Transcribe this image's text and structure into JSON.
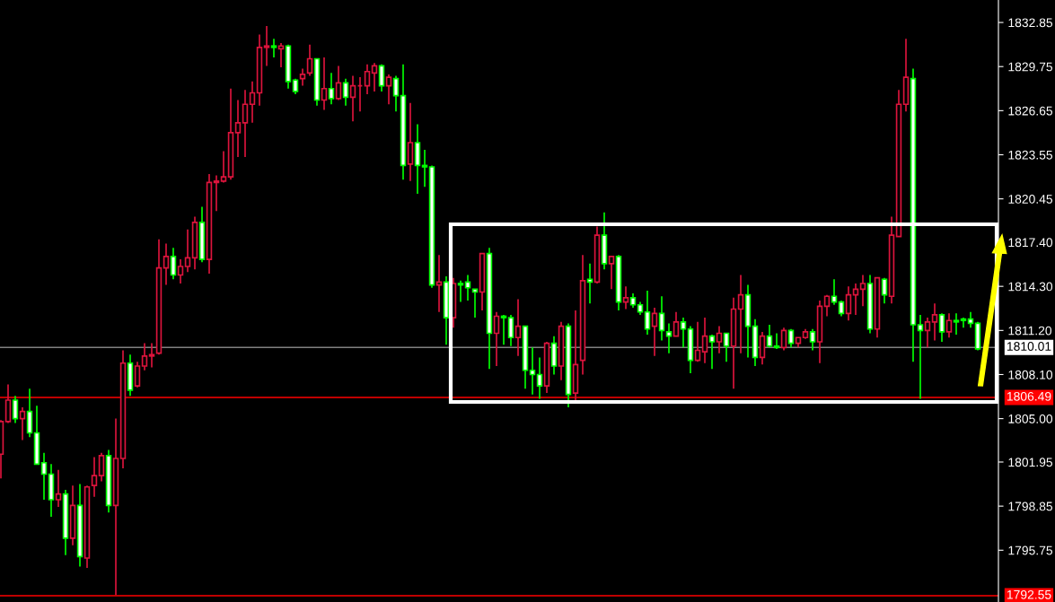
{
  "chart_data": {
    "type": "candlestick",
    "categories": [
      null,
      null,
      null,
      null,
      null,
      null,
      null,
      null,
      null,
      null,
      null,
      null,
      null,
      null,
      null,
      null,
      null,
      null,
      null,
      null,
      null,
      null,
      null,
      null,
      null,
      null,
      null,
      null,
      null,
      null,
      null,
      null,
      null,
      null,
      null,
      null,
      null,
      null,
      null,
      null,
      null,
      null,
      null,
      null,
      null,
      null,
      null,
      null,
      null,
      null,
      null,
      null,
      null,
      null,
      null,
      null,
      null,
      null,
      null,
      null,
      null,
      null,
      null,
      null,
      null,
      null,
      null,
      null,
      null,
      null,
      null,
      null,
      null,
      null,
      null,
      null,
      null,
      null,
      null,
      null,
      null,
      null,
      null,
      null,
      null,
      null,
      null,
      null,
      null,
      null,
      null,
      null,
      null,
      null,
      null,
      null,
      null,
      null,
      null,
      null,
      null,
      null,
      null,
      null,
      null,
      null,
      null,
      null,
      null,
      null,
      null,
      null,
      null,
      null,
      null,
      null,
      null,
      null,
      null,
      null,
      null,
      null,
      null,
      null,
      null,
      null,
      null,
      null,
      null,
      null,
      null,
      null,
      null,
      null,
      null,
      null,
      null
    ],
    "ohlc": [
      [
        1802.5,
        1804.9,
        1800.8,
        1804.8
      ],
      [
        1804.8,
        1807.4,
        1804.7,
        1806.3
      ],
      [
        1806.3,
        1806.6,
        1804.7,
        1805.0
      ],
      [
        1805.0,
        1805.8,
        1803.5,
        1805.5
      ],
      [
        1805.5,
        1807.1,
        1803.7,
        1804.0
      ],
      [
        1804.0,
        1805.9,
        1801.8,
        1801.8
      ],
      [
        1801.9,
        1802.6,
        1799.3,
        1801.1
      ],
      [
        1801.1,
        1801.8,
        1798.1,
        1799.3
      ],
      [
        1799.3,
        1801.4,
        1798.8,
        1799.7
      ],
      [
        1799.7,
        1800.0,
        1795.4,
        1796.6
      ],
      [
        1796.6,
        1800.3,
        1796.1,
        1798.9
      ],
      [
        1798.9,
        1800.4,
        1794.6,
        1795.3
      ],
      [
        1795.2,
        1800.3,
        1794.5,
        1800.2
      ],
      [
        1800.3,
        1802.3,
        1799.5,
        1801.0
      ],
      [
        1801.0,
        1802.6,
        1800.6,
        1802.4
      ],
      [
        1802.4,
        1802.8,
        1798.4,
        1798.9
      ],
      [
        1798.9,
        1805.0,
        1792.6,
        1802.2
      ],
      [
        1802.2,
        1809.8,
        1801.5,
        1808.9
      ],
      [
        1808.9,
        1809.5,
        1806.6,
        1807.0
      ],
      [
        1807.3,
        1809.0,
        1807.2,
        1808.7
      ],
      [
        1808.7,
        1810.3,
        1808.4,
        1809.4
      ],
      [
        1809.4,
        1810.3,
        1808.6,
        1809.5
      ],
      [
        1809.6,
        1817.6,
        1809.5,
        1815.6
      ],
      [
        1815.6,
        1817.3,
        1814.4,
        1816.4
      ],
      [
        1816.4,
        1817.0,
        1814.8,
        1815.1
      ],
      [
        1815.1,
        1816.2,
        1814.5,
        1815.7
      ],
      [
        1815.7,
        1818.3,
        1815.3,
        1816.3
      ],
      [
        1816.3,
        1819.2,
        1815.5,
        1818.8
      ],
      [
        1818.8,
        1819.9,
        1816.0,
        1816.2
      ],
      [
        1816.2,
        1822.2,
        1815.2,
        1821.6
      ],
      [
        1821.6,
        1822.1,
        1819.6,
        1821.7
      ],
      [
        1821.7,
        1823.8,
        1821.6,
        1822.0
      ],
      [
        1822.0,
        1828.2,
        1821.8,
        1825.1
      ],
      [
        1825.1,
        1827.4,
        1823.4,
        1825.8
      ],
      [
        1825.8,
        1828.1,
        1823.4,
        1827.1
      ],
      [
        1827.1,
        1828.7,
        1825.8,
        1827.9
      ],
      [
        1827.9,
        1832.0,
        1827.0,
        1831.1
      ],
      [
        1831.1,
        1832.6,
        1829.8,
        1831.2
      ],
      [
        1831.2,
        1831.7,
        1830.4,
        1831.1
      ],
      [
        1831.0,
        1831.4,
        1829.7,
        1831.2
      ],
      [
        1831.2,
        1831.3,
        1828.2,
        1828.7
      ],
      [
        1828.8,
        1828.9,
        1827.8,
        1828.0
      ],
      [
        1828.9,
        1829.6,
        1828.4,
        1829.2
      ],
      [
        1829.3,
        1831.3,
        1829.1,
        1830.3
      ],
      [
        1830.3,
        1830.3,
        1827.0,
        1827.4
      ],
      [
        1827.4,
        1830.4,
        1826.7,
        1828.2
      ],
      [
        1828.2,
        1829.3,
        1827.1,
        1827.5
      ],
      [
        1827.5,
        1829.8,
        1827.4,
        1828.6
      ],
      [
        1828.6,
        1828.9,
        1827.0,
        1827.6
      ],
      [
        1827.6,
        1829.1,
        1825.9,
        1828.4
      ],
      [
        1828.4,
        1829.0,
        1826.6,
        1828.4
      ],
      [
        1828.4,
        1829.9,
        1827.8,
        1829.4
      ],
      [
        1829.3,
        1830.0,
        1828.0,
        1829.8
      ],
      [
        1829.8,
        1829.9,
        1828.0,
        1828.4
      ],
      [
        1828.4,
        1829.2,
        1827.1,
        1829.0
      ],
      [
        1828.9,
        1829.1,
        1826.6,
        1827.7
      ],
      [
        1827.7,
        1829.9,
        1821.8,
        1822.8
      ],
      [
        1822.9,
        1827.2,
        1821.7,
        1824.4
      ],
      [
        1824.4,
        1825.7,
        1820.8,
        1822.8
      ],
      [
        1822.8,
        1823.9,
        1821.3,
        1822.7
      ],
      [
        1822.7,
        1822.8,
        1814.2,
        1814.4
      ],
      [
        1814.4,
        1816.5,
        1812.5,
        1814.6
      ],
      [
        1814.6,
        1815.0,
        1810.2,
        1812.1
      ],
      [
        1812.1,
        1814.9,
        1811.4,
        1814.5
      ],
      [
        1814.5,
        1814.7,
        1813.2,
        1814.4
      ],
      [
        1814.6,
        1815.1,
        1813.3,
        1814.2
      ],
      [
        1814.1,
        1814.1,
        1812.1,
        1813.9
      ],
      [
        1813.9,
        1816.6,
        1812.6,
        1816.6
      ],
      [
        1816.6,
        1817.0,
        1808.5,
        1811.0
      ],
      [
        1811.0,
        1812.5,
        1808.7,
        1812.2
      ],
      [
        1812.2,
        1812.3,
        1810.2,
        1812.1
      ],
      [
        1812.1,
        1812.3,
        1810.1,
        1810.7
      ],
      [
        1810.7,
        1813.4,
        1809.4,
        1811.5
      ],
      [
        1811.5,
        1811.5,
        1807.1,
        1808.4
      ],
      [
        1808.4,
        1810.0,
        1806.7,
        1808.1
      ],
      [
        1808.1,
        1809.3,
        1806.4,
        1807.3
      ],
      [
        1807.3,
        1810.4,
        1806.8,
        1810.3
      ],
      [
        1810.3,
        1810.8,
        1808.1,
        1808.7
      ],
      [
        1808.7,
        1811.8,
        1807.7,
        1811.5
      ],
      [
        1811.5,
        1811.7,
        1805.8,
        1806.7
      ],
      [
        1806.8,
        1812.6,
        1806.3,
        1808.8
      ],
      [
        1809.1,
        1816.5,
        1808.1,
        1814.7
      ],
      [
        1814.8,
        1815.9,
        1813.1,
        1814.6
      ],
      [
        1814.6,
        1818.5,
        1814.5,
        1817.9
      ],
      [
        1817.9,
        1819.5,
        1815.5,
        1815.9
      ],
      [
        1815.9,
        1816.4,
        1814.1,
        1816.4
      ],
      [
        1816.4,
        1816.5,
        1812.6,
        1813.2
      ],
      [
        1813.2,
        1814.3,
        1812.7,
        1813.5
      ],
      [
        1813.5,
        1813.8,
        1812.8,
        1813.0
      ],
      [
        1813.0,
        1813.2,
        1812.3,
        1812.5
      ],
      [
        1812.5,
        1814.0,
        1810.9,
        1811.3
      ],
      [
        1811.5,
        1812.8,
        1809.4,
        1812.4
      ],
      [
        1812.4,
        1813.6,
        1810.5,
        1811.2
      ],
      [
        1811.1,
        1811.7,
        1809.6,
        1810.8
      ],
      [
        1810.8,
        1812.5,
        1810.8,
        1811.8
      ],
      [
        1811.8,
        1812.1,
        1810.0,
        1811.3
      ],
      [
        1811.3,
        1811.5,
        1808.2,
        1809.1
      ],
      [
        1809.1,
        1811.8,
        1809.0,
        1809.8
      ],
      [
        1809.7,
        1812.1,
        1808.9,
        1810.8
      ],
      [
        1810.8,
        1810.9,
        1808.5,
        1810.4
      ],
      [
        1810.4,
        1811.5,
        1809.6,
        1811.0
      ],
      [
        1811.0,
        1811.0,
        1809.0,
        1810.1
      ],
      [
        1810.1,
        1813.5,
        1807.1,
        1812.7
      ],
      [
        1812.7,
        1815.1,
        1809.6,
        1813.7
      ],
      [
        1813.7,
        1814.4,
        1809.3,
        1811.5
      ],
      [
        1811.5,
        1812.0,
        1808.7,
        1809.3
      ],
      [
        1809.3,
        1811.1,
        1808.8,
        1810.8
      ],
      [
        1810.8,
        1811.6,
        1810.0,
        1810.1
      ],
      [
        1810.1,
        1811.0,
        1809.9,
        1810.0
      ],
      [
        1810.0,
        1811.4,
        1809.8,
        1811.2
      ],
      [
        1811.2,
        1811.3,
        1810.0,
        1810.3
      ],
      [
        1810.3,
        1810.7,
        1810.0,
        1810.7
      ],
      [
        1810.7,
        1811.3,
        1810.6,
        1811.1
      ],
      [
        1811.1,
        1811.3,
        1809.8,
        1810.4
      ],
      [
        1810.4,
        1813.3,
        1808.9,
        1812.9
      ],
      [
        1812.9,
        1813.7,
        1812.2,
        1813.6
      ],
      [
        1813.6,
        1814.8,
        1813.0,
        1813.2
      ],
      [
        1813.2,
        1813.3,
        1812.2,
        1812.4
      ],
      [
        1812.4,
        1814.3,
        1811.9,
        1813.7
      ],
      [
        1813.7,
        1814.5,
        1812.3,
        1814.1
      ],
      [
        1814.1,
        1815.1,
        1812.9,
        1814.5
      ],
      [
        1814.5,
        1815.1,
        1811.0,
        1811.3
      ],
      [
        1811.3,
        1814.9,
        1810.7,
        1814.9
      ],
      [
        1814.8,
        1814.9,
        1813.1,
        1813.7
      ],
      [
        1813.6,
        1819.2,
        1813.1,
        1817.9
      ],
      [
        1817.8,
        1828.1,
        1817.8,
        1827.1
      ],
      [
        1827.1,
        1831.7,
        1826.6,
        1829.0
      ],
      [
        1828.9,
        1829.6,
        1809.0,
        1811.6
      ],
      [
        1811.6,
        1812.3,
        1806.4,
        1811.2
      ],
      [
        1811.2,
        1812.1,
        1810.0,
        1811.8
      ],
      [
        1811.8,
        1813.1,
        1810.5,
        1812.3
      ],
      [
        1812.3,
        1812.4,
        1810.4,
        1811.1
      ],
      [
        1811.1,
        1812.4,
        1810.7,
        1811.9
      ],
      [
        1811.9,
        1812.4,
        1810.9,
        1811.8
      ],
      [
        1812.0,
        1812.1,
        1811.4,
        1811.9
      ],
      [
        1812.0,
        1812.5,
        1811.4,
        1811.7
      ],
      [
        1811.7,
        1811.8,
        1809.8,
        1809.9
      ]
    ],
    "colors": [
      "#dc143c",
      "#dc143c",
      "#00ff00",
      "#dc143c",
      "#00ff00",
      "#00ff00",
      "#00ff00",
      "#00ff00",
      "#dc143c",
      "#00ff00",
      "#dc143c",
      "#00ff00",
      "#dc143c",
      "#dc143c",
      "#dc143c",
      "#00ff00",
      "#dc143c",
      "#dc143c",
      "#00ff00",
      "#dc143c",
      "#dc143c",
      "#dc143c",
      "#dc143c",
      "#dc143c",
      "#00ff00",
      "#dc143c",
      "#dc143c",
      "#dc143c",
      "#00ff00",
      "#dc143c",
      "#dc143c",
      "#dc143c",
      "#dc143c",
      "#dc143c",
      "#dc143c",
      "#dc143c",
      "#dc143c",
      "#dc143c",
      "#00ff00",
      "#dc143c",
      "#00ff00",
      "#00ff00",
      "#dc143c",
      "#dc143c",
      "#00ff00",
      "#dc143c",
      "#00ff00",
      "#dc143c",
      "#00ff00",
      "#dc143c",
      "#dc143c",
      "#dc143c",
      "#dc143c",
      "#00ff00",
      "#dc143c",
      "#00ff00",
      "#00ff00",
      "#dc143c",
      "#00ff00",
      "#00ff00",
      "#00ff00",
      "#dc143c",
      "#00ff00",
      "#dc143c",
      "#00ff00",
      "#00ff00",
      "#00ff00",
      "#dc143c",
      "#00ff00",
      "#dc143c",
      "#00ff00",
      "#00ff00",
      "#dc143c",
      "#00ff00",
      "#00ff00",
      "#00ff00",
      "#dc143c",
      "#00ff00",
      "#dc143c",
      "#00ff00",
      "#dc143c",
      "#dc143c",
      "#00ff00",
      "#dc143c",
      "#00ff00",
      "#dc143c",
      "#00ff00",
      "#dc143c",
      "#00ff00",
      "#00ff00",
      "#00ff00",
      "#dc143c",
      "#00ff00",
      "#00ff00",
      "#dc143c",
      "#00ff00",
      "#00ff00",
      "#dc143c",
      "#dc143c",
      "#00ff00",
      "#dc143c",
      "#00ff00",
      "#dc143c",
      "#dc143c",
      "#00ff00",
      "#00ff00",
      "#dc143c",
      "#00ff00",
      "#00ff00",
      "#dc143c",
      "#00ff00",
      "#dc143c",
      "#dc143c",
      "#00ff00",
      "#dc143c",
      "#dc143c",
      "#00ff00",
      "#00ff00",
      "#dc143c",
      "#dc143c",
      "#dc143c",
      "#00ff00",
      "#dc143c",
      "#00ff00",
      "#dc143c",
      "#dc143c",
      "#dc143c",
      "#00ff00",
      "#00ff00",
      "#dc143c",
      "#dc143c",
      "#00ff00",
      "#dc143c",
      "#00ff00",
      "#00ff00",
      "#00ff00",
      "#00ff00"
    ],
    "ylim": [
      1792.11,
      1834.43
    ],
    "yticks": [
      {
        "value": 1832.85,
        "label": "1832.85"
      },
      {
        "value": 1829.75,
        "label": "1829.75"
      },
      {
        "value": 1826.65,
        "label": "1826.65"
      },
      {
        "value": 1823.55,
        "label": "1823.55"
      },
      {
        "value": 1820.45,
        "label": "1820.45"
      },
      {
        "value": 1817.4,
        "label": "1817.40"
      },
      {
        "value": 1814.3,
        "label": "1814.30"
      },
      {
        "value": 1811.2,
        "label": "1811.20"
      },
      {
        "value": 1808.1,
        "label": "1808.10"
      },
      {
        "value": 1805.0,
        "label": "1805.00"
      },
      {
        "value": 1801.95,
        "label": "1801.95"
      },
      {
        "value": 1798.85,
        "label": "1798.85"
      },
      {
        "value": 1795.75,
        "label": "1795.75"
      }
    ],
    "ref_lines": [
      {
        "axis": "y",
        "value": 1810.01,
        "label": "1810.01",
        "color": "#808080"
      },
      {
        "axis": "y",
        "value": 1806.49,
        "label": "1806.49",
        "color": "#ff0000"
      },
      {
        "axis": "y",
        "value": 1792.55,
        "label": "1792.55",
        "color": "#ff0000"
      }
    ],
    "tick_labels": "y",
    "grid": false
  }
}
